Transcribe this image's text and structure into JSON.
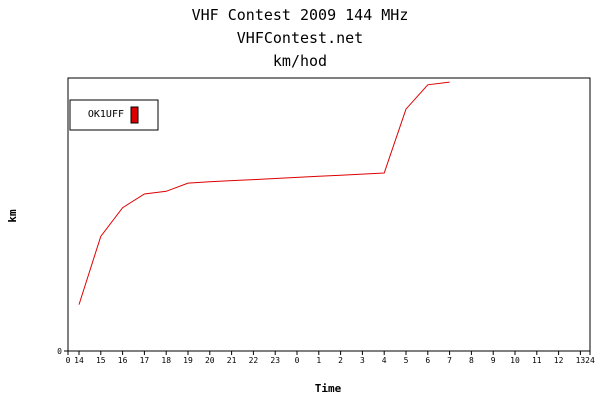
{
  "chart_data": {
    "type": "line",
    "title": "VHF Contest 2009 144 MHz",
    "subtitle": "VHFContest.net",
    "subtitle2": "km/hod",
    "xlabel": "Time",
    "ylabel": "km",
    "x_ticks": [
      "0",
      "14",
      "15",
      "16",
      "17",
      "18",
      "19",
      "20",
      "21",
      "22",
      "23",
      "0",
      "1",
      "2",
      "3",
      "4",
      "5",
      "6",
      "7",
      "8",
      "9",
      "10",
      "11",
      "12",
      "13",
      "24"
    ],
    "y_ticks": [
      "0"
    ],
    "ylim": [
      0,
      100
    ],
    "grid": false,
    "legend_position": "top-left",
    "series": [
      {
        "name": "OK1UFF",
        "color": "#dd0000",
        "x": [
          "14",
          "15",
          "16",
          "17",
          "18",
          "19",
          "20",
          "21",
          "22",
          "23",
          "0",
          "1",
          "2",
          "3",
          "4",
          "5",
          "6",
          "7"
        ],
        "values": [
          17,
          42,
          52.5,
          57.5,
          58.5,
          61.5,
          62,
          62.4,
          62.8,
          63.2,
          63.6,
          64,
          64.4,
          64.8,
          65.2,
          88.6,
          97.5,
          98.5
        ]
      }
    ]
  }
}
